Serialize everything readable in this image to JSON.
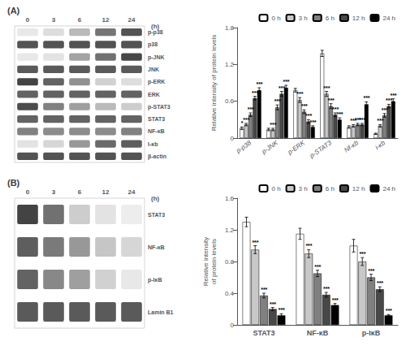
{
  "chart_data": [
    {
      "type": "heatmap",
      "title": "(A)",
      "x": [
        "0",
        "3",
        "6",
        "12",
        "24"
      ],
      "xlabel": "(h)",
      "y": [
        "p-p38",
        "p38",
        "p-JNK",
        "JNK",
        "p-ERK",
        "ERK",
        "p-STAT3",
        "STAT3",
        "NF-κB",
        "I-κb",
        "β-actin"
      ],
      "cells": [
        [
          0.1,
          0.15,
          0.3,
          0.6,
          0.75
        ],
        [
          0.75,
          0.75,
          0.75,
          0.75,
          0.75
        ],
        [
          0.1,
          0.12,
          0.4,
          0.62,
          0.8
        ],
        [
          0.72,
          0.72,
          0.72,
          0.72,
          0.72
        ],
        [
          0.82,
          0.68,
          0.48,
          0.2,
          0.15
        ],
        [
          0.68,
          0.68,
          0.68,
          0.68,
          0.68
        ],
        [
          0.78,
          0.55,
          0.42,
          0.3,
          0.22
        ],
        [
          0.68,
          0.68,
          0.68,
          0.68,
          0.68
        ],
        [
          0.55,
          0.5,
          0.5,
          0.5,
          0.55
        ],
        [
          0.12,
          0.18,
          0.45,
          0.65,
          0.7
        ],
        [
          0.75,
          0.75,
          0.75,
          0.75,
          0.75
        ]
      ]
    },
    {
      "type": "bar",
      "categories": [
        "p-p38",
        "p-JNK",
        "p-ERK",
        "p-STAT3",
        "Nf-κb",
        "i-κb"
      ],
      "ylabel": "Relative intensity of protein levels",
      "ylim": [
        0,
        1.8
      ],
      "yticks": [
        0,
        0.6,
        1.2,
        1.8
      ],
      "grid": false,
      "legend": "upper right",
      "series": [
        {
          "name": "0 h",
          "color": "#ffffff",
          "values": [
            0.16,
            0.14,
            0.78,
            1.38,
            0.18,
            0.07
          ],
          "errors": [
            0.02,
            0.02,
            0.03,
            0.05,
            0.02,
            0.01
          ],
          "annotations": [
            "*",
            null,
            null,
            null,
            null,
            null
          ]
        },
        {
          "name": "3 h",
          "color": "#c8c8c8",
          "values": [
            0.22,
            0.14,
            0.62,
            0.72,
            0.2,
            0.2
          ],
          "errors": [
            0.02,
            0.02,
            0.04,
            0.04,
            0.02,
            0.02
          ],
          "annotations": [
            "***",
            "***",
            "***",
            "***",
            "***",
            "***"
          ]
        },
        {
          "name": "6 h",
          "color": "#808080",
          "values": [
            0.38,
            0.5,
            0.43,
            0.52,
            0.22,
            0.37
          ],
          "errors": [
            0.03,
            0.04,
            0.03,
            0.04,
            0.02,
            0.03
          ],
          "annotations": [
            "***",
            "***",
            "***",
            "***",
            "***",
            "***"
          ]
        },
        {
          "name": "12 h",
          "color": "#484848",
          "values": [
            0.65,
            0.72,
            0.27,
            0.38,
            0.22,
            0.52
          ],
          "errors": [
            0.03,
            0.04,
            0.03,
            0.03,
            0.02,
            0.03
          ],
          "annotations": [
            "***",
            "***",
            "***",
            "***",
            "***",
            "***"
          ]
        },
        {
          "name": "24 h",
          "color": "#000000",
          "values": [
            0.78,
            0.82,
            0.18,
            0.3,
            0.55,
            0.6
          ],
          "errors": [
            0.04,
            0.04,
            0.02,
            0.03,
            0.04,
            0.04
          ],
          "annotations": [
            "***",
            "***",
            "***",
            "***",
            "***",
            "***"
          ]
        }
      ]
    },
    {
      "type": "heatmap",
      "title": "(B)",
      "x": [
        "0",
        "3",
        "6",
        "12",
        "24"
      ],
      "xlabel": "(h)",
      "y": [
        "STAT3",
        "NF-κB",
        "p-IκB",
        "Lamin B1"
      ],
      "cells": [
        [
          0.82,
          0.62,
          0.22,
          0.12,
          0.08
        ],
        [
          0.7,
          0.58,
          0.45,
          0.25,
          0.18
        ],
        [
          0.68,
          0.52,
          0.42,
          0.2,
          0.1
        ],
        [
          0.72,
          0.72,
          0.72,
          0.72,
          0.72
        ]
      ]
    },
    {
      "type": "bar",
      "categories": [
        "STAT3",
        "NF-κB",
        "p-IκB"
      ],
      "ylabel": "Relative intensity\nof protein levels",
      "ylim": [
        0,
        1.6
      ],
      "yticks": [
        0,
        0.4,
        0.8,
        1.2,
        1.6
      ],
      "grid": false,
      "legend": "upper right",
      "series": [
        {
          "name": "0 h",
          "color": "#ffffff",
          "values": [
            1.3,
            1.15,
            1.0
          ],
          "errors": [
            0.06,
            0.07,
            0.08
          ],
          "annotations": [
            null,
            null,
            null
          ]
        },
        {
          "name": "3 h",
          "color": "#c8c8c8",
          "values": [
            0.95,
            0.9,
            0.8
          ],
          "errors": [
            0.05,
            0.05,
            0.05
          ],
          "annotations": [
            "***",
            "***",
            "***"
          ]
        },
        {
          "name": "6 h",
          "color": "#808080",
          "values": [
            0.37,
            0.65,
            0.6
          ],
          "errors": [
            0.03,
            0.04,
            0.04
          ],
          "annotations": [
            "***",
            "***",
            "***"
          ]
        },
        {
          "name": "12 h",
          "color": "#484848",
          "values": [
            0.2,
            0.38,
            0.45
          ],
          "errors": [
            0.02,
            0.03,
            0.03
          ],
          "annotations": [
            "***",
            "***",
            "***"
          ]
        },
        {
          "name": "24 h",
          "color": "#000000",
          "values": [
            0.12,
            0.25,
            0.12
          ],
          "errors": [
            0.02,
            0.02,
            0.01
          ],
          "annotations": [
            "***",
            "***",
            "***"
          ]
        }
      ]
    }
  ]
}
